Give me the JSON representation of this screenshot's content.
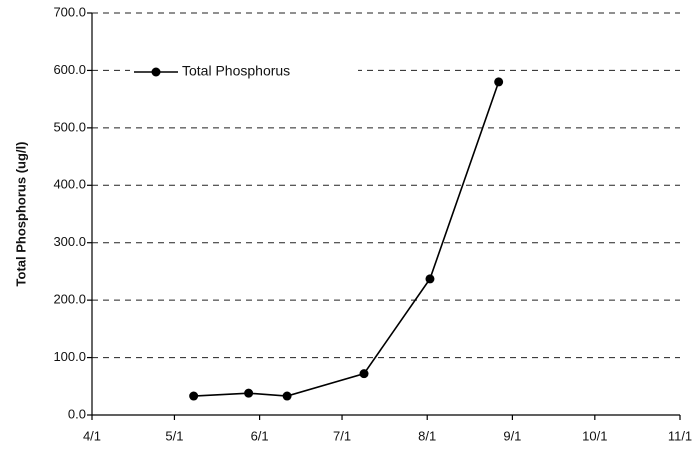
{
  "chart_data": {
    "type": "line",
    "y_label": "Total Phosphorus (ug/l)",
    "x": [
      "5/8",
      "5/28",
      "6/11",
      "7/9",
      "8/2",
      "8/27"
    ],
    "series": [
      {
        "name": "Total Phosphorus",
        "color": "#000000",
        "values": [
          33,
          38,
          33,
          72,
          237,
          580
        ]
      }
    ],
    "xlim": [
      "4/1",
      "11/1"
    ],
    "xticks": [
      "4/1",
      "5/1",
      "6/1",
      "7/1",
      "8/1",
      "9/1",
      "10/1",
      "11/1"
    ],
    "ylim": [
      0,
      700
    ],
    "yticks": [
      {
        "value": 0,
        "label": "0.0"
      },
      {
        "value": 100,
        "label": "100.0"
      },
      {
        "value": 200,
        "label": "200.0"
      },
      {
        "value": 300,
        "label": "300.0"
      },
      {
        "value": 400,
        "label": "400.0"
      },
      {
        "value": 500,
        "label": "500.0"
      },
      {
        "value": 600,
        "label": "600.0"
      },
      {
        "value": 700,
        "label": "700.0"
      }
    ],
    "grid": true,
    "legend": "top-left"
  }
}
